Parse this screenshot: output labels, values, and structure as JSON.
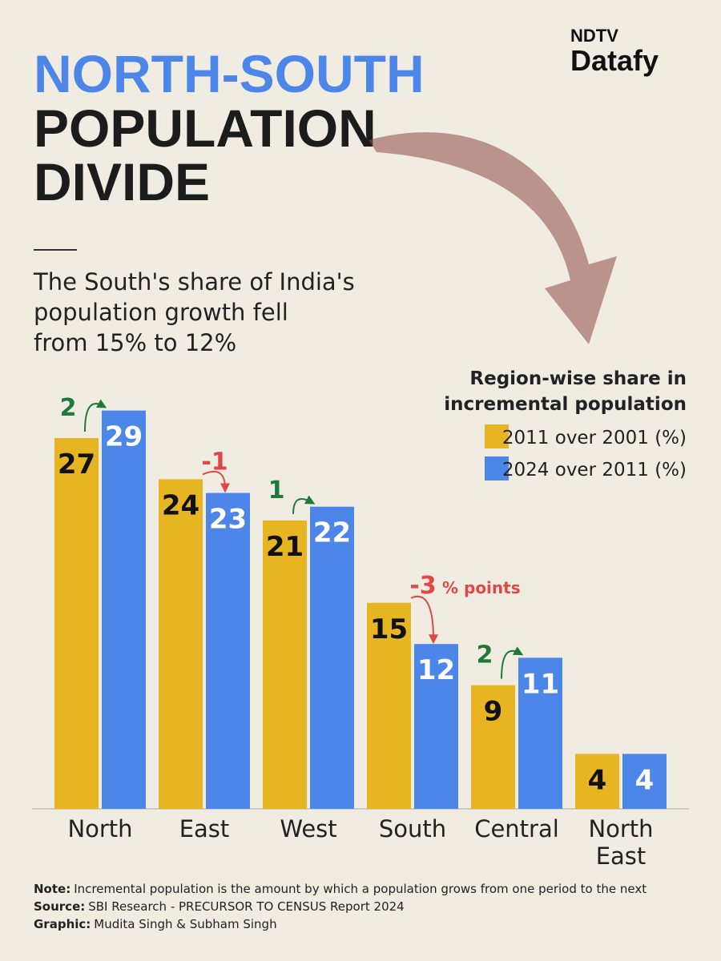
{
  "header": {
    "title_line1": "NORTH-SOUTH",
    "title_line2": "POPULATION",
    "title_line3": "DIVIDE",
    "logo_top": "NDTV",
    "logo_bottom": "Datafy",
    "subtitle": [
      "The South's share of India's",
      "population growth fell",
      "from 15% to 12%"
    ]
  },
  "chart_data": {
    "type": "bar",
    "legend_title": [
      "Region-wise share in",
      "incremental population"
    ],
    "categories": [
      "North",
      "East",
      "West",
      "South",
      "Central",
      "North East"
    ],
    "series": [
      {
        "name": "2011 over 2001 (%)",
        "color": "#e8b522",
        "values": [
          27,
          24,
          21,
          15,
          9,
          4
        ]
      },
      {
        "name": "2024 over 2011 (%)",
        "color": "#4b86e8",
        "values": [
          29,
          23,
          22,
          12,
          11,
          4
        ]
      }
    ],
    "changes": [
      2,
      -1,
      1,
      -3,
      2,
      null
    ],
    "change_unit": "% points"
  },
  "footer": {
    "notes": [
      {
        "label": "Note:",
        "text": "Incremental population is the amount by which a population grows from one period to the next"
      },
      {
        "label": "Source:",
        "text": "SBI Research - PRECURSOR TO CENSUS Report 2024"
      },
      {
        "label": "Graphic:",
        "text": "Mudita Singh & Subham Singh"
      }
    ]
  }
}
